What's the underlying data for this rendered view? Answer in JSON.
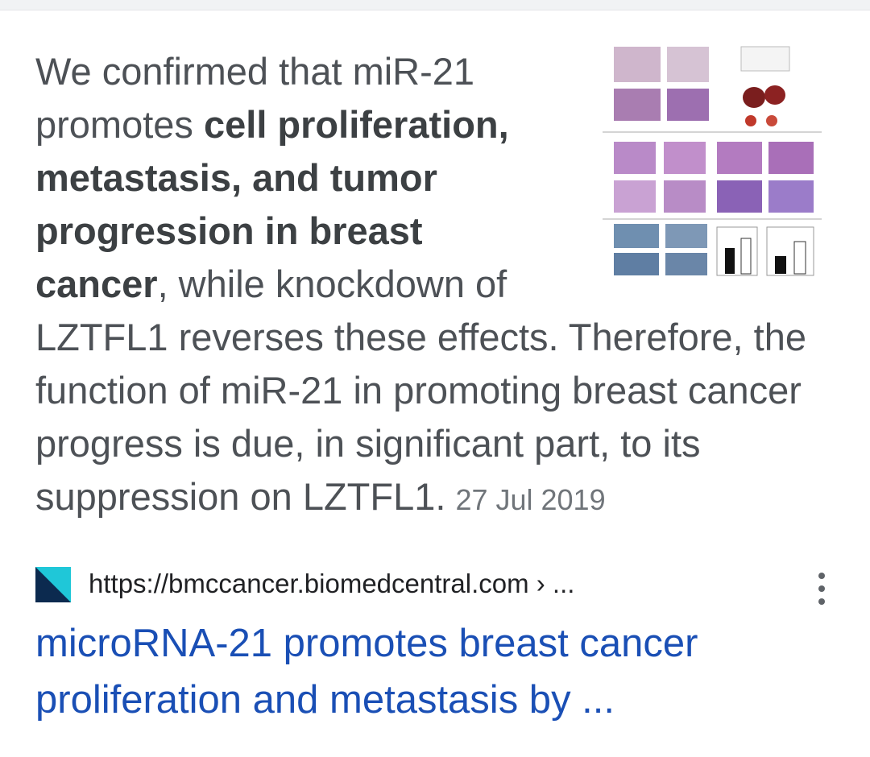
{
  "snippet": {
    "intro": "We confirmed that miR-21 promotes ",
    "bold": "cell proliferation, metastasis, and tumor progression in breast cancer",
    "rest": ", while knockdown of LZTFL1 reverses these effects. Therefore, the function of miR-21 in promoting breast cancer progress is due, in significant part, to its suppression on LZTFL1.",
    "date": "27 Jul 2019"
  },
  "thumbnail": {
    "icon": "figure-thumbnail"
  },
  "result": {
    "url": "https://bmccancer.biomedcentral.com › ...",
    "title": "microRNA-21 promotes breast cancer proliferation and metastasis by ...",
    "favicon_colors": [
      "#0c2a4f",
      "#1fc7d8"
    ],
    "menu_icon": "more-vert-icon"
  }
}
